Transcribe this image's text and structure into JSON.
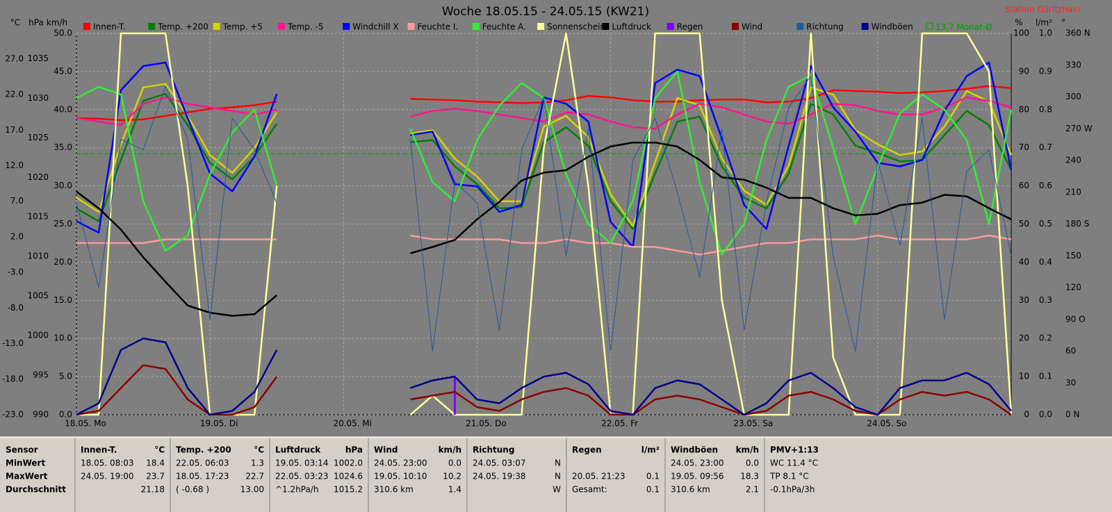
{
  "chart_data": {
    "type": "line",
    "title": "Woche 18.05.15 - 24.05.15 (KW21)",
    "station": "Station Göritzhain",
    "x": [
      0,
      4,
      8,
      12,
      16,
      20,
      24,
      28,
      32,
      36,
      40,
      44,
      48,
      52,
      56,
      60,
      64,
      68,
      72,
      76,
      80,
      84,
      88,
      92,
      96,
      100,
      104,
      108,
      112,
      116,
      120,
      124,
      128,
      132,
      136,
      140,
      144,
      148,
      152,
      156,
      160,
      164,
      168
    ],
    "xlim": [
      0,
      168
    ],
    "xticks": [
      {
        "value": 0,
        "label": "18.05. Mo"
      },
      {
        "value": 24,
        "label": "19.05. Di"
      },
      {
        "value": 48,
        "label": "20.05. Mi"
      },
      {
        "value": 72,
        "label": "21.05. Do"
      },
      {
        "value": 96,
        "label": "22.05. Fr"
      },
      {
        "value": 120,
        "label": "23.05. Sa"
      },
      {
        "value": 144,
        "label": "24.05. So"
      }
    ],
    "grid": true,
    "ylabel": "km/h",
    "ylim": [
      0,
      50
    ],
    "yticks": [
      {
        "value": 0,
        "label": "0.0"
      },
      {
        "value": 5,
        "label": "5.0"
      },
      {
        "value": 10,
        "label": "10.0"
      },
      {
        "value": 15,
        "label": "15.0"
      },
      {
        "value": 20,
        "label": "20.0"
      },
      {
        "value": 25,
        "label": "25.0"
      },
      {
        "value": 30,
        "label": "30.0"
      },
      {
        "value": 35,
        "label": "35.0"
      },
      {
        "value": 40,
        "label": "40.0"
      },
      {
        "value": 45,
        "label": "45.0"
      },
      {
        "value": 50,
        "label": "50.0"
      }
    ],
    "y2label": "°C",
    "y2lim": [
      -23,
      30.6
    ],
    "y2ticks": [
      {
        "value": -23,
        "label": "-23.0"
      },
      {
        "value": -18,
        "label": "-18.0"
      },
      {
        "value": -13,
        "label": "-13.0"
      },
      {
        "value": -8,
        "label": "-8.0"
      },
      {
        "value": -3,
        "label": "-3.0"
      },
      {
        "value": 2,
        "label": "2.0"
      },
      {
        "value": 7,
        "label": "7.0"
      },
      {
        "value": 12,
        "label": "12.0"
      },
      {
        "value": 17,
        "label": "17.0"
      },
      {
        "value": 22,
        "label": "22.0"
      },
      {
        "value": 27,
        "label": "27.0"
      }
    ],
    "y3label": "hPa",
    "y3lim": [
      990,
      1038.2
    ],
    "y3ticks": [
      990,
      995,
      1000,
      1005,
      1010,
      1015,
      1020,
      1025,
      1030,
      1035
    ],
    "y4label": "%",
    "y4lim": [
      0,
      100
    ],
    "y4ticks": [
      0,
      10,
      20,
      30,
      40,
      50,
      60,
      70,
      80,
      90,
      100
    ],
    "y5label": "l/m²",
    "y5lim": [
      0,
      1
    ],
    "y5ticks": [
      {
        "value": 0,
        "label": "0.0"
      },
      0.1,
      0.2,
      0.3,
      0.4,
      0.5,
      0.6,
      0.7,
      0.8,
      0.9,
      {
        "value": 1,
        "label": "1.0"
      }
    ],
    "y6label": "°",
    "y6lim": [
      0,
      360
    ],
    "y6ticks": [
      {
        "value": 0,
        "label": "0 N"
      },
      30,
      60,
      {
        "value": 90,
        "label": "90 O"
      },
      120,
      150,
      {
        "value": 180,
        "label": "180 S"
      },
      210,
      240,
      {
        "value": 270,
        "label": "270 W"
      },
      300,
      330,
      {
        "value": 360,
        "label": "360 N"
      }
    ],
    "reference": {
      "name": "Monat-Ø",
      "value": 13.7,
      "axis": "y2",
      "color": "#00a000"
    },
    "series": [
      {
        "name": "Innen-T.",
        "color": "#ff0000",
        "axis": "y2",
        "values": [
          18.7,
          18.6,
          18.4,
          18.5,
          19.0,
          19.5,
          20.0,
          20.2,
          20.5,
          21.0,
          null,
          null,
          null,
          null,
          null,
          21.4,
          21.3,
          21.2,
          21.0,
          20.9,
          20.8,
          20.9,
          21.2,
          21.8,
          21.6,
          21.2,
          21.0,
          21.0,
          21.2,
          21.3,
          21.3,
          20.9,
          21.0,
          21.5,
          22.6,
          22.5,
          22.4,
          22.2,
          22.3,
          22.5,
          22.8,
          23.2,
          22.9
        ]
      },
      {
        "name": "Temp. +200",
        "color": "#008000",
        "axis": "y2",
        "values": [
          6.0,
          4.2,
          12.8,
          21.1,
          22.1,
          17.7,
          12.4,
          10.1,
          13.3,
          17.9,
          null,
          null,
          null,
          null,
          null,
          15.3,
          15.6,
          11.9,
          9.4,
          6.0,
          6.2,
          15.3,
          17.4,
          14.8,
          7.0,
          3.1,
          10.9,
          18.2,
          18.9,
          11.9,
          7.5,
          6.0,
          10.9,
          20.7,
          19.2,
          14.8,
          13.8,
          12.6,
          12.8,
          16.3,
          19.7,
          17.7,
          11.4
        ]
      },
      {
        "name": "Temp. +5",
        "color": "#d4d400",
        "axis": "y2",
        "values": [
          7.5,
          5.5,
          15.0,
          23.0,
          23.5,
          19.0,
          13.5,
          11.0,
          14.5,
          19.5,
          null,
          null,
          null,
          null,
          null,
          16.5,
          17.0,
          13.0,
          10.5,
          7.0,
          7.0,
          17.5,
          19.0,
          16.0,
          8.0,
          3.5,
          12.5,
          21.5,
          20.5,
          13.0,
          8.5,
          6.5,
          12.0,
          23.0,
          22.0,
          17.0,
          15.0,
          13.5,
          14.0,
          17.5,
          22.5,
          21.0,
          13.5
        ]
      },
      {
        "name": "Temp. -5",
        "color": "#ff1493",
        "axis": "y2",
        "values": [
          18.7,
          18.2,
          17.7,
          20.7,
          21.6,
          20.7,
          20.2,
          19.7,
          19.2,
          19.9,
          null,
          null,
          null,
          null,
          null,
          18.9,
          19.7,
          20.0,
          19.7,
          19.2,
          18.7,
          18.2,
          19.5,
          19.2,
          18.2,
          17.4,
          17.2,
          19.2,
          20.7,
          20.2,
          19.2,
          18.2,
          17.9,
          19.2,
          20.7,
          20.5,
          19.7,
          19.2,
          19.2,
          20.2,
          21.6,
          21.1,
          20.2
        ]
      },
      {
        "name": "Windchill X",
        "color": "#0000ff",
        "axis": "y2",
        "values": [
          4.2,
          2.6,
          22.6,
          26.0,
          26.5,
          18.7,
          10.9,
          8.4,
          13.3,
          22.1,
          null,
          null,
          null,
          null,
          null,
          16.3,
          16.8,
          9.4,
          9.1,
          5.5,
          6.5,
          21.6,
          20.7,
          18.2,
          4.1,
          0.6,
          23.6,
          25.5,
          24.6,
          15.8,
          6.5,
          3.1,
          14.8,
          26.0,
          20.2,
          16.8,
          12.4,
          11.9,
          12.8,
          19.7,
          24.6,
          26.5,
          11.4
        ]
      },
      {
        "name": "Feuchte I.",
        "color": "#ff9a9a",
        "axis": "y4",
        "values": [
          45,
          45,
          45,
          45,
          46,
          46,
          46,
          46,
          46,
          46,
          null,
          null,
          null,
          null,
          null,
          47,
          46,
          46,
          46,
          46,
          45,
          45,
          46,
          45,
          45,
          44,
          44,
          43,
          42,
          43,
          44,
          45,
          45,
          46,
          46,
          46,
          47,
          46,
          46,
          46,
          46,
          47,
          46
        ]
      },
      {
        "name": "Feuchte A.",
        "color": "#33ee33",
        "axis": "y4",
        "values": [
          83,
          86,
          84,
          56,
          43,
          47,
          63,
          74,
          80,
          60,
          null,
          null,
          null,
          null,
          null,
          75,
          61,
          56,
          72,
          81,
          87,
          83,
          63,
          50,
          45,
          56,
          83,
          90,
          61,
          42,
          50,
          72,
          86,
          89,
          70,
          50,
          65,
          79,
          84,
          80,
          72,
          50,
          80
        ]
      },
      {
        "name": "Sonnenschein",
        "color": "#ffff99",
        "axis": "y4",
        "values": [
          0,
          0,
          100,
          100,
          100,
          60,
          0,
          0,
          0,
          60,
          null,
          null,
          null,
          null,
          null,
          0,
          5,
          0,
          0,
          0,
          0,
          70,
          100,
          60,
          0,
          0,
          100,
          100,
          100,
          30,
          0,
          0,
          0,
          100,
          15,
          0,
          0,
          0,
          100,
          100,
          100,
          90,
          0
        ]
      },
      {
        "name": "Luftdruck",
        "color": "#000000",
        "axis": "y3",
        "values": [
          1018.2,
          1016.1,
          1013.4,
          1009.9,
          1006.8,
          1003.8,
          1002.9,
          1002.5,
          1002.7,
          1005.1,
          null,
          null,
          null,
          null,
          null,
          1010.4,
          1011.2,
          1012.1,
          1014.7,
          1016.9,
          1019.6,
          1020.6,
          1020.9,
          1022.6,
          1023.9,
          1024.4,
          1024.4,
          1023.9,
          1022.2,
          1020.0,
          1019.7,
          1018.7,
          1017.4,
          1017.4,
          1016.1,
          1015.2,
          1015.4,
          1016.5,
          1016.8,
          1017.8,
          1017.6,
          1016.1,
          1014.7
        ]
      },
      {
        "name": "Regen",
        "color": "#8000ff",
        "axis": "y5",
        "style": "bar",
        "values": [
          0,
          0,
          0,
          0,
          0,
          0,
          0,
          0,
          0,
          0,
          null,
          null,
          null,
          null,
          null,
          0,
          0,
          0.1,
          0,
          0,
          0,
          0,
          0,
          0,
          0,
          0,
          0,
          0,
          0,
          0,
          0,
          0,
          0,
          0,
          0,
          0,
          0,
          0,
          0,
          0,
          0,
          0,
          0
        ]
      },
      {
        "name": "Wind",
        "color": "#8b0000",
        "axis": "y",
        "values": [
          0,
          0.5,
          3.5,
          6.5,
          6.0,
          2.0,
          0,
          0,
          1.0,
          5.0,
          null,
          null,
          null,
          null,
          null,
          2.0,
          2.5,
          3.0,
          1.0,
          0.5,
          2.0,
          3.0,
          3.5,
          2.5,
          0,
          0,
          2.0,
          2.5,
          2.0,
          1.0,
          0,
          0.5,
          2.5,
          3.0,
          2.0,
          0.5,
          0,
          2.0,
          3.0,
          2.5,
          3.0,
          2.0,
          0
        ]
      },
      {
        "name": "Richtung",
        "color": "#1e5a9e",
        "axis": "y6",
        "values": [
          200,
          120,
          260,
          250,
          310,
          260,
          90,
          280,
          250,
          200,
          null,
          null,
          null,
          null,
          null,
          260,
          60,
          220,
          200,
          80,
          250,
          300,
          150,
          270,
          60,
          240,
          280,
          210,
          130,
          270,
          80,
          200,
          290,
          320,
          150,
          60,
          240,
          160,
          280,
          90,
          230,
          250,
          150
        ]
      },
      {
        "name": "Windböen",
        "color": "#00008b",
        "axis": "y",
        "values": [
          0,
          1.5,
          8.5,
          10.0,
          9.5,
          3.5,
          0,
          0.5,
          3.0,
          8.5,
          null,
          null,
          null,
          null,
          null,
          3.5,
          4.5,
          5.0,
          2.0,
          1.5,
          3.5,
          5.0,
          5.5,
          4.0,
          0.5,
          0,
          3.5,
          4.5,
          4.0,
          2.0,
          0,
          1.5,
          4.5,
          5.5,
          3.5,
          1.0,
          0,
          3.5,
          4.5,
          4.5,
          5.5,
          4.0,
          0.5
        ]
      }
    ]
  },
  "table": {
    "row_labels": [
      "Sensor",
      "MinWert",
      "MaxWert",
      "Durchschnitt"
    ],
    "columns": [
      {
        "name": "Innen-T.",
        "unit": "°C",
        "rows": [
          [
            "18.05. 08:03",
            "18.4"
          ],
          [
            "24.05. 19:00",
            "23.7"
          ],
          [
            null,
            "21.18"
          ]
        ]
      },
      {
        "name": "Temp. +200",
        "unit": "°C",
        "rows": [
          [
            "22.05. 06:03",
            "1.3"
          ],
          [
            "18.05. 17:23",
            "22.7"
          ],
          [
            "( -0.68 )",
            "13.00"
          ]
        ]
      },
      {
        "name": "Luftdruck",
        "unit": "hPa",
        "rows": [
          [
            "19.05. 03:14",
            "1002.0"
          ],
          [
            "22.05. 03:23",
            "1024.6"
          ],
          [
            "^1.2hPa/h",
            "1015.2"
          ]
        ]
      },
      {
        "name": "Wind",
        "unit": "km/h",
        "rows": [
          [
            "24.05. 23:00",
            "0.0"
          ],
          [
            "19.05. 10:10",
            "10.2"
          ],
          [
            "310.6 km",
            "1.4"
          ]
        ]
      },
      {
        "name": "Richtung",
        "unit": null,
        "rows": [
          [
            "24.05. 03:07",
            "N"
          ],
          [
            "24.05. 19:38",
            "N"
          ],
          [
            null,
            "W"
          ]
        ]
      },
      {
        "name": "Regen",
        "unit": "l/m²",
        "rows": [
          [
            null,
            null
          ],
          [
            "20.05. 21:23",
            "0.1"
          ],
          [
            "Gesamt:",
            "0.1"
          ]
        ]
      },
      {
        "name": "Windböen",
        "unit": "km/h",
        "rows": [
          [
            "24.05. 23:00",
            "0.0"
          ],
          [
            "19.05. 09:56",
            "18.3"
          ],
          [
            "310.6 km",
            "2.1"
          ]
        ]
      },
      {
        "name": "PMV+1:13",
        "unit": null,
        "rows": [
          [
            "WC 11.4 °C"
          ],
          [
            "TP 8.1 °C"
          ],
          [
            "-0.1hPa/3h"
          ]
        ]
      }
    ]
  }
}
